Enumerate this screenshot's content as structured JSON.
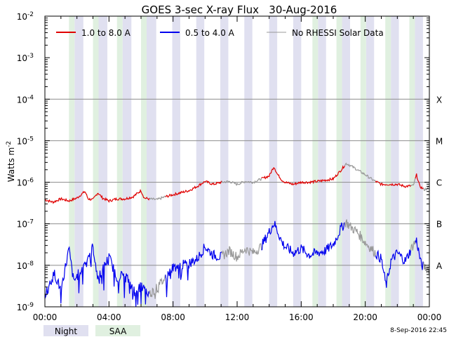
{
  "chart_data": {
    "type": "line",
    "title": "GOES 3-sec X-ray Flux   30-Aug-2016",
    "ylabel": "Watts m",
    "ylabel_sup": "-2",
    "xlabel": "",
    "x_unit": "hours UT",
    "xlim": [
      0,
      24
    ],
    "ylim_exp": [
      -9,
      -2
    ],
    "y_ticks": [
      {
        "base": "10",
        "exp": "-9"
      },
      {
        "base": "10",
        "exp": "-8"
      },
      {
        "base": "10",
        "exp": "-7"
      },
      {
        "base": "10",
        "exp": "-6"
      },
      {
        "base": "10",
        "exp": "-5"
      },
      {
        "base": "10",
        "exp": "-4"
      },
      {
        "base": "10",
        "exp": "-3"
      },
      {
        "base": "10",
        "exp": "-2"
      }
    ],
    "x_tick_labels": [
      "00:00",
      "04:00",
      "08:00",
      "12:00",
      "16:00",
      "20:00",
      "00:00"
    ],
    "x_tick_values": [
      0,
      4,
      8,
      12,
      16,
      20,
      24
    ],
    "flare_classes": [
      {
        "label": "A",
        "log": -8
      },
      {
        "label": "B",
        "log": -7
      },
      {
        "label": "C",
        "log": -6
      },
      {
        "label": "M",
        "log": -5
      },
      {
        "label": "X",
        "log": -4
      }
    ],
    "legend": [
      {
        "label": "1.0 to 8.0 A",
        "color": "#e00000"
      },
      {
        "label": "0.5 to 4.0 A",
        "color": "#0000ee"
      },
      {
        "label": "No RHESSI Solar Data",
        "color": "#999999"
      }
    ],
    "series": [
      {
        "name": "1.0 to 8.0 A",
        "color": "#e00000",
        "gap_color": "#999999",
        "points": [
          [
            0,
            -6.42
          ],
          [
            0.5,
            -6.48
          ],
          [
            1,
            -6.4
          ],
          [
            1.5,
            -6.45
          ],
          [
            2,
            -6.38
          ],
          [
            2.5,
            -6.22
          ],
          [
            2.7,
            -6.4
          ],
          [
            3,
            -6.42
          ],
          [
            3.3,
            -6.25
          ],
          [
            3.6,
            -6.38
          ],
          [
            4,
            -6.45
          ],
          [
            4.5,
            -6.4
          ],
          [
            5,
            -6.4
          ],
          [
            5.5,
            -6.35
          ],
          [
            6,
            -6.2
          ],
          [
            6.2,
            -6.38
          ],
          [
            6.5,
            -6.4
          ],
          [
            7,
            -6.42
          ],
          [
            7.5,
            -6.35
          ],
          [
            8,
            -6.3
          ],
          [
            8.5,
            -6.25
          ],
          [
            9,
            -6.2
          ],
          [
            9.5,
            -6.1
          ],
          [
            10,
            -5.98
          ],
          [
            10.5,
            -6.05
          ],
          [
            11,
            -6.0
          ],
          [
            11.5,
            -5.98
          ],
          [
            12,
            -6.05
          ],
          [
            12.5,
            -5.98
          ],
          [
            13,
            -6.0
          ],
          [
            13.5,
            -5.92
          ],
          [
            14,
            -5.85
          ],
          [
            14.3,
            -5.62
          ],
          [
            14.5,
            -5.8
          ],
          [
            14.8,
            -5.95
          ],
          [
            15,
            -6.0
          ],
          [
            15.5,
            -6.05
          ],
          [
            16,
            -6.0
          ],
          [
            16.5,
            -6.0
          ],
          [
            17,
            -5.98
          ],
          [
            17.5,
            -5.95
          ],
          [
            18,
            -5.92
          ],
          [
            18.5,
            -5.7
          ],
          [
            18.8,
            -5.55
          ],
          [
            19,
            -5.58
          ],
          [
            19.5,
            -5.7
          ],
          [
            20,
            -5.82
          ],
          [
            20.5,
            -5.95
          ],
          [
            21,
            -6.05
          ],
          [
            21.5,
            -6.05
          ],
          [
            22,
            -6.05
          ],
          [
            22.5,
            -6.1
          ],
          [
            23,
            -6.08
          ],
          [
            23.2,
            -5.82
          ],
          [
            23.4,
            -6.1
          ],
          [
            23.7,
            -6.18
          ],
          [
            24,
            -6.12
          ]
        ],
        "gaps": [
          [
            6.5,
            7.5
          ],
          [
            11,
            13.5
          ],
          [
            18.7,
            20.6
          ],
          [
            22.8,
            23.1
          ],
          [
            23.6,
            24
          ]
        ]
      },
      {
        "name": "0.5 to 4.0 A",
        "color": "#0000ee",
        "gap_color": "#999999",
        "points": [
          [
            0,
            -8.7
          ],
          [
            0.6,
            -8.2
          ],
          [
            1,
            -8.6
          ],
          [
            1.5,
            -7.6
          ],
          [
            1.8,
            -8.4
          ],
          [
            2.4,
            -8.0
          ],
          [
            3,
            -7.55
          ],
          [
            3.3,
            -8.3
          ],
          [
            3.6,
            -8.1
          ],
          [
            4,
            -7.8
          ],
          [
            4.5,
            -8.3
          ],
          [
            5,
            -8.2
          ],
          [
            5.5,
            -8.6
          ],
          [
            6,
            -8.5
          ],
          [
            6.5,
            -8.7
          ],
          [
            7,
            -8.55
          ],
          [
            7.5,
            -8.3
          ],
          [
            8,
            -8.05
          ],
          [
            8.5,
            -8.0
          ],
          [
            9,
            -7.95
          ],
          [
            9.5,
            -7.85
          ],
          [
            10,
            -7.55
          ],
          [
            10.5,
            -7.75
          ],
          [
            11,
            -7.8
          ],
          [
            11.5,
            -7.65
          ],
          [
            12,
            -7.8
          ],
          [
            12.5,
            -7.6
          ],
          [
            13,
            -7.7
          ],
          [
            13.5,
            -7.55
          ],
          [
            14,
            -7.2
          ],
          [
            14.3,
            -6.98
          ],
          [
            14.5,
            -7.15
          ],
          [
            14.8,
            -7.45
          ],
          [
            15,
            -7.55
          ],
          [
            15.5,
            -7.7
          ],
          [
            16,
            -7.6
          ],
          [
            16.5,
            -7.75
          ],
          [
            17,
            -7.7
          ],
          [
            17.5,
            -7.65
          ],
          [
            18,
            -7.5
          ],
          [
            18.5,
            -7.1
          ],
          [
            18.8,
            -6.95
          ],
          [
            19,
            -7.05
          ],
          [
            19.5,
            -7.2
          ],
          [
            20,
            -7.45
          ],
          [
            20.5,
            -7.65
          ],
          [
            21,
            -7.85
          ],
          [
            21.3,
            -8.5
          ],
          [
            21.6,
            -7.9
          ],
          [
            22,
            -7.7
          ],
          [
            22.5,
            -7.9
          ],
          [
            23,
            -7.5
          ],
          [
            23.2,
            -7.4
          ],
          [
            23.5,
            -8.0
          ],
          [
            24,
            -8.1
          ]
        ],
        "gaps": [
          [
            6.5,
            7.5
          ],
          [
            11,
            13.5
          ],
          [
            18.7,
            20.6
          ],
          [
            22.8,
            23.1
          ],
          [
            23.6,
            24
          ]
        ]
      }
    ],
    "night_bands": [
      [
        1.85,
        2.4
      ],
      [
        3.35,
        3.9
      ],
      [
        4.85,
        5.4
      ],
      [
        6.35,
        6.95
      ],
      [
        7.95,
        8.45
      ],
      [
        9.45,
        9.95
      ],
      [
        10.95,
        11.45
      ],
      [
        12.45,
        12.95
      ],
      [
        14.0,
        14.5
      ],
      [
        15.5,
        16.0
      ],
      [
        17.05,
        17.55
      ],
      [
        18.55,
        19.05
      ],
      [
        20.05,
        20.55
      ],
      [
        21.6,
        22.1
      ],
      [
        23.1,
        23.6
      ]
    ],
    "saa_bands": [
      [
        1.5,
        1.85
      ],
      [
        3.0,
        3.35
      ],
      [
        4.5,
        4.85
      ],
      [
        6.0,
        6.35
      ],
      [
        16.7,
        17.05
      ],
      [
        18.2,
        18.55
      ],
      [
        19.7,
        20.05
      ],
      [
        21.25,
        21.6
      ],
      [
        22.75,
        23.1
      ]
    ],
    "band_legend": {
      "night": "Night",
      "saa": "SAA"
    },
    "band_colors": {
      "night": "#e0e0f0",
      "saa": "#e0f0e0"
    },
    "timestamp": "8-Sep-2016 22:45"
  }
}
